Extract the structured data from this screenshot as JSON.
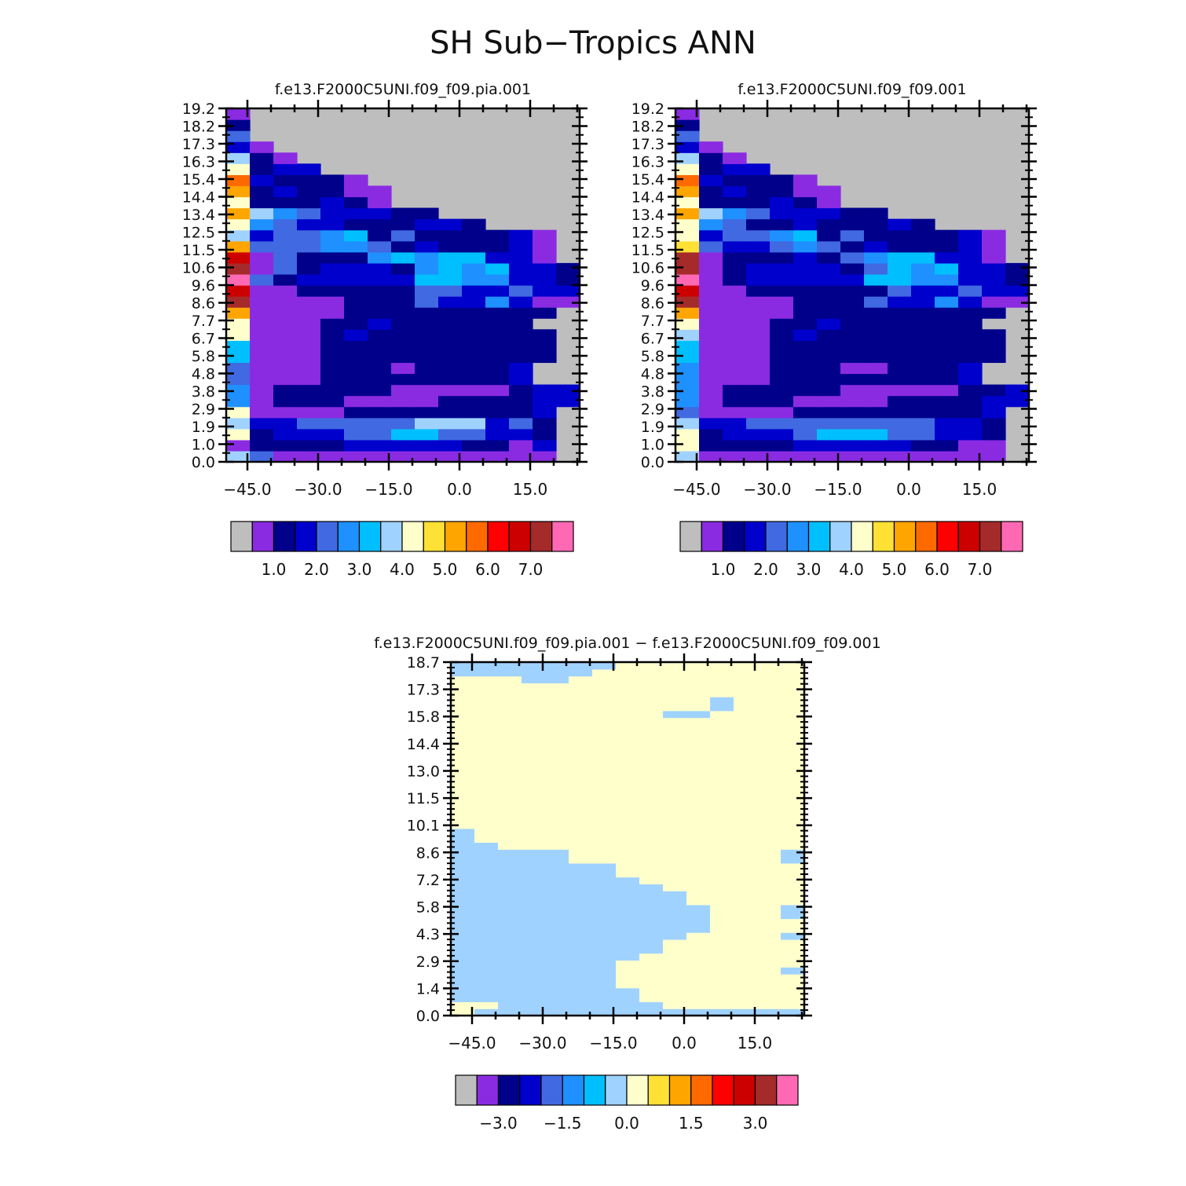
{
  "title": "SH Sub−Tropics ANN",
  "colors": {
    "missing": "#bebebe",
    "palette": [
      "#8a2be2",
      "#00008b",
      "#0000cd",
      "#4169e1",
      "#1e90ff",
      "#00bfff",
      "#a0d2ff",
      "#ffffcc",
      "#ffe135",
      "#ffa500",
      "#ff6a00",
      "#ff0000",
      "#cd0000",
      "#a52a2a",
      "#ff69b4"
    ]
  },
  "chart_data": [
    {
      "type": "heatmap",
      "title": "f.e13.F2000C5UNI.f09_f09.pia.001",
      "x_ticks": [
        "−45.0",
        "−30.0",
        "−15.0",
        "0.0",
        "15.0"
      ],
      "y_ticks": [
        "0.0",
        "1.0",
        "1.9",
        "2.9",
        "3.8",
        "4.8",
        "5.8",
        "6.7",
        "7.7",
        "8.6",
        "9.6",
        "10.6",
        "11.5",
        "12.5",
        "13.4",
        "14.4",
        "15.4",
        "16.3",
        "17.3",
        "18.2",
        "19.2"
      ],
      "colorbar_labels": [
        "1.0",
        "2.0",
        "3.0",
        "4.0",
        "5.0",
        "6.0",
        "7.0"
      ],
      "legend": "colorbar-bottom",
      "ncols": 15,
      "rows_bottom_up": [
        "63000000000000",
        "01111222221102",
        "71222335533221",
        "62233333666231",
        "70000111111112",
        "401110000111122",
        "401111100000122",
        "3000111111112",
        "3000111011112",
        "50001111111111",
        "50001111111111",
        "70001211111111",
        "7000112111111",
        "90000111111111",
        "D00001113224200",
        "C001111133223221",
        "E31222225544221",
        "D03122214545221",
        "C0311145455220",
        "93334431211120",
        "62334513111120",
        "74322111221",
        "964322211",
        "7111210",
        "9121100",
        "A21110",
        "7122",
        "610",
        "20",
        "3",
        "1",
        "0"
      ]
    },
    {
      "type": "heatmap",
      "title": "f.e13.F2000C5UNI.f09_f09.001",
      "x_ticks": [
        "−45.0",
        "−30.0",
        "−15.0",
        "0.0",
        "15.0"
      ],
      "y_ticks": [
        "0.0",
        "1.0",
        "1.9",
        "2.9",
        "3.8",
        "4.8",
        "5.8",
        "6.7",
        "7.7",
        "8.6",
        "9.6",
        "10.6",
        "11.5",
        "12.5",
        "13.4",
        "14.4",
        "15.4",
        "16.3",
        "17.3",
        "18.2",
        "19.2"
      ],
      "colorbar_labels": [
        "1.0",
        "2.0",
        "3.0",
        "4.0",
        "5.0",
        "6.0",
        "7.0"
      ],
      "legend": "colorbar-bottom",
      "ncols": 15,
      "rows_bottom_up": [
        "60000000000000",
        "71111222221100",
        "71222355533221",
        "62233333333221",
        "30000111111112",
        "401110000111122",
        "401111100000112",
        "4000111111112",
        "4000111001112",
        "50001111111111",
        "50001111111111",
        "60001211111111",
        "7000112111111",
        "90000111111111",
        "D00001113224200",
        "C001111113223221",
        "E01222225544221",
        "D01222213545221",
        "D0111213455220",
        "83223431211120",
        "72334513111120",
        "74311211121",
        "964322211",
        "7111210",
        "9121100",
        "A21110",
        "7122",
        "610",
        "20",
        "3",
        "1",
        "0"
      ]
    },
    {
      "type": "heatmap",
      "title": "f.e13.F2000C5UNI.f09_f09.pia.001 − f.e13.F2000C5UNI.f09_f09.001",
      "x_ticks": [
        "−45.0",
        "−30.0",
        "−15.0",
        "0.0",
        "15.0"
      ],
      "y_ticks": [
        "0.0",
        "1.4",
        "2.9",
        "4.3",
        "5.8",
        "7.2",
        "8.6",
        "10.1",
        "11.5",
        "13.0",
        "14.4",
        "15.8",
        "17.3",
        "18.7"
      ],
      "colorbar_labels": [
        "−3.0",
        "−1.5",
        "0.0",
        "1.5",
        "3.0"
      ],
      "legend": "colorbar-bottom",
      "ncols": 15,
      "rows_bottom_up": [
        "7666666666666666",
        "7766666667777776",
        "6666666677777777",
        "6666666677777777",
        "6666666777777777",
        "6666666777777777",
        "6666666777777767",
        "6666666777777776",
        "6666666677777776",
        "6666666667777776",
        "6666666667777777",
        "6666666666777767",
        "6666666666677777",
        "6666666666677777",
        "6666666666677767",
        "6666666666677767",
        "6666666666777777",
        "6666666666777776",
        "6666666667777777",
        "6666666677777777",
        "6666666777777777",
        "6666666777777777",
        "6666677777777767",
        "6666677777777767",
        "6677777777777777",
        "6777777777777777",
        "6777777777777777",
        "7777777777777777",
        "7777777777777777",
        "7777777777777777",
        "7777777777777777",
        "7777777777777777",
        "7777777777777777",
        "7777777777777777",
        "7777777777777777",
        "7777777777777777",
        "7777777777777777",
        "7777777777777777",
        "7777777777777777",
        "7777777777777777",
        "7777777777777777",
        "7777777777777777",
        "7777777777777777",
        "7777777776677777",
        "7777777777767777",
        "7777777777767777",
        "7777777777777777",
        "7777777777777777",
        "7776677777777777",
        "6666667777777777",
        "6666666777777777"
      ]
    }
  ]
}
